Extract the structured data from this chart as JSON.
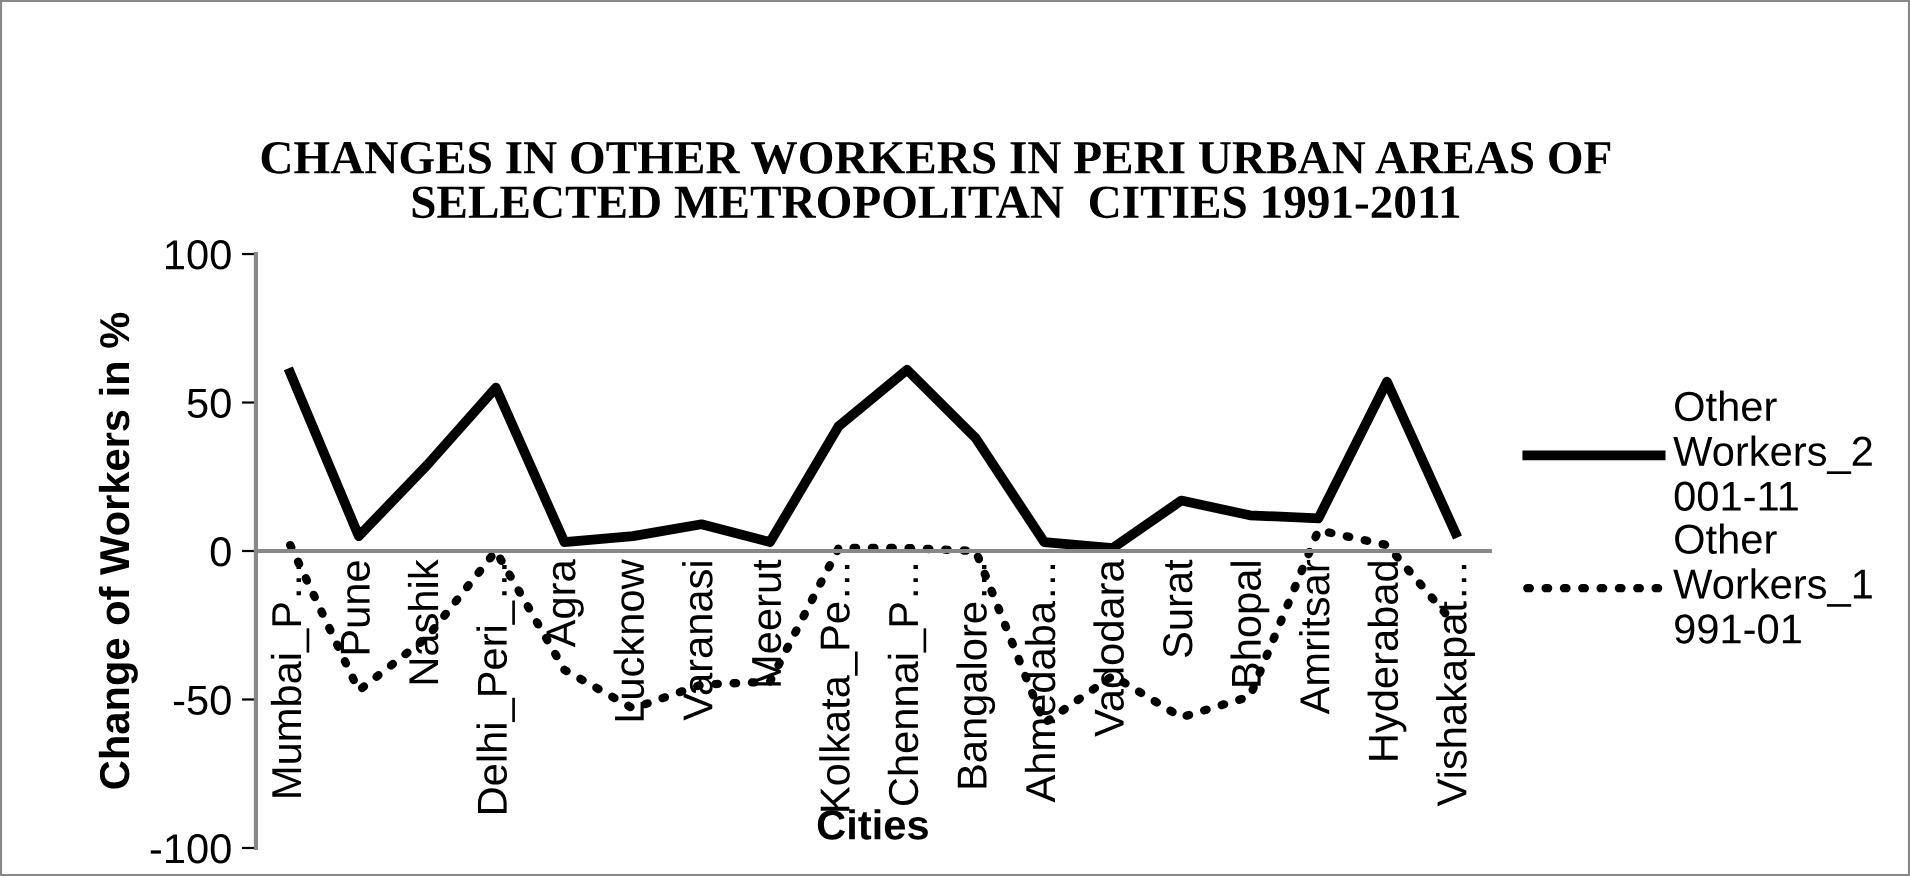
{
  "chart_data": {
    "type": "line",
    "title": "CHANGES IN OTHER WORKERS IN PERI URBAN AREAS OF SELECTED METROPOLITAN  CITIES 1991-2011",
    "xlabel": "Cities",
    "ylabel": "Change of Workers in %",
    "categories": [
      "Mumbai_P…",
      "Pune",
      "Nashik",
      "Delhi_Peri_…",
      "Agra",
      "Lucknow",
      "Varanasi",
      "Meerut",
      "Kolkata_Pe…",
      "Chennai_P…",
      "Bangalore…",
      "Ahmedaba…",
      "Vadodara",
      "Surat",
      "Bhopal",
      "Amritsar",
      "Hyderabad",
      "Vishakapat…"
    ],
    "series": [
      {
        "name": "Other Workers_2001-11",
        "color": "#000000",
        "line_style": "solid",
        "values": [
          60,
          5,
          29,
          55,
          3,
          5,
          9,
          3,
          42,
          61,
          38,
          3,
          1,
          17,
          12,
          11,
          57,
          6
        ]
      },
      {
        "name": "Other Workers_1991-01",
        "color": "#000000",
        "line_style": "dotted",
        "values": [
          2,
          -47,
          -29,
          0,
          -40,
          -53,
          -45,
          -44,
          1,
          1,
          0,
          -58,
          -42,
          -56,
          -49,
          7,
          2,
          -25
        ]
      }
    ],
    "ylim": [
      -100,
      100
    ],
    "yticks": [
      -100,
      -50,
      0,
      50,
      100
    ],
    "grid": false,
    "legend": "right",
    "marker": "none"
  }
}
